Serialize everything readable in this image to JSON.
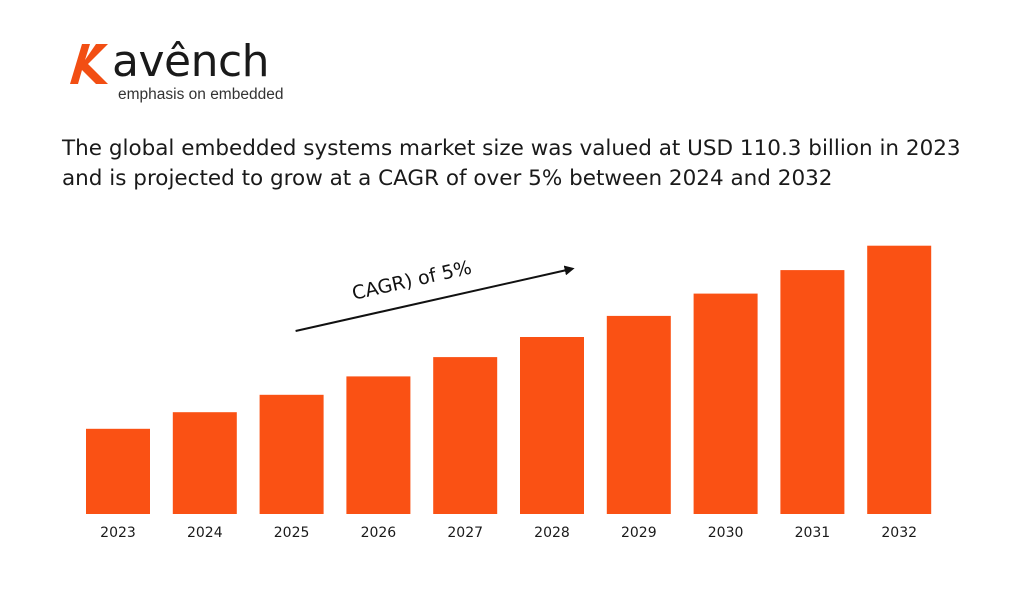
{
  "logo": {
    "wordmark": "avênch",
    "tagline": "emphasis on embedded",
    "accent_color": "#F24E13",
    "icon": "k-mark-icon"
  },
  "headline": "The global embedded systems market size was valued at USD 110.3 billion in 2023 and is projected to grow at a CAGR of over 5% between 2024 and 2032",
  "chart_data": {
    "type": "bar",
    "categories": [
      "2023",
      "2024",
      "2025",
      "2026",
      "2027",
      "2028",
      "2029",
      "2030",
      "2031",
      "2032"
    ],
    "values": [
      110.3,
      115.8,
      121.6,
      127.7,
      134.1,
      140.8,
      147.8,
      155.2,
      163.0,
      171.1
    ],
    "bar_color": "#FA5114",
    "title": "",
    "xlabel": "",
    "ylabel": "",
    "ylim": [
      82,
      175
    ],
    "grid": false,
    "annotation": {
      "text": "CAGR) of 5%",
      "arrow_from_category": "2025",
      "arrow_to_category": "2029"
    }
  }
}
